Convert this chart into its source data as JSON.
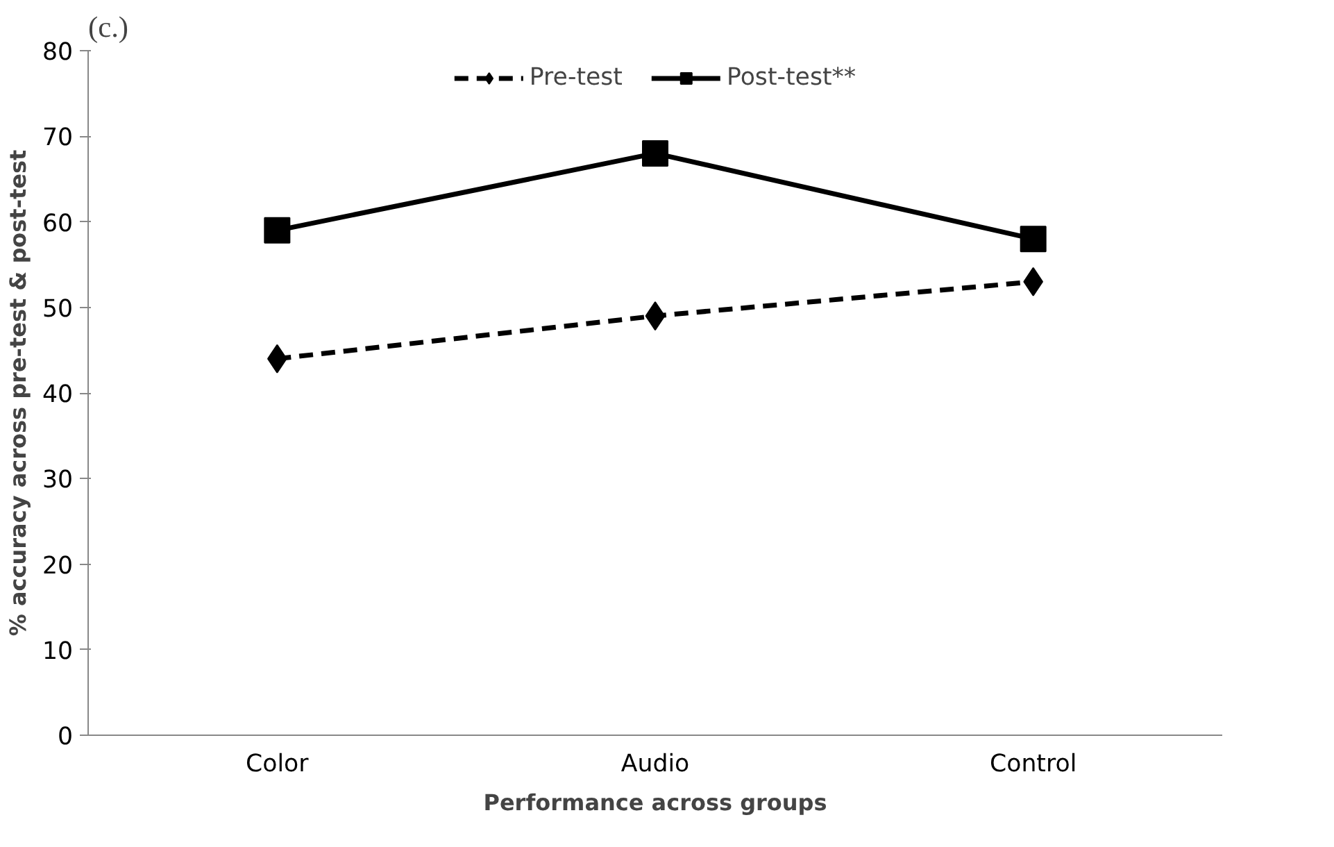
{
  "chart_data": {
    "type": "line",
    "title": "(c.)",
    "xlabel": "Performance across groups",
    "ylabel": "% accuracy across pre-test & post-test",
    "categories": [
      "Color",
      "Audio",
      "Control"
    ],
    "series": [
      {
        "name": "Pre-test",
        "color": "#000000",
        "values": [
          44,
          49,
          53
        ],
        "marker": "diamond",
        "line_style": "dashed"
      },
      {
        "name": "Post-test**",
        "color": "#000000",
        "values": [
          59,
          68,
          58
        ],
        "marker": "square",
        "line_style": "solid"
      }
    ],
    "ylim": [
      0,
      80
    ],
    "yticks": [
      0,
      10,
      20,
      30,
      40,
      50,
      60,
      70,
      80
    ],
    "grid": false,
    "legend": "top"
  }
}
